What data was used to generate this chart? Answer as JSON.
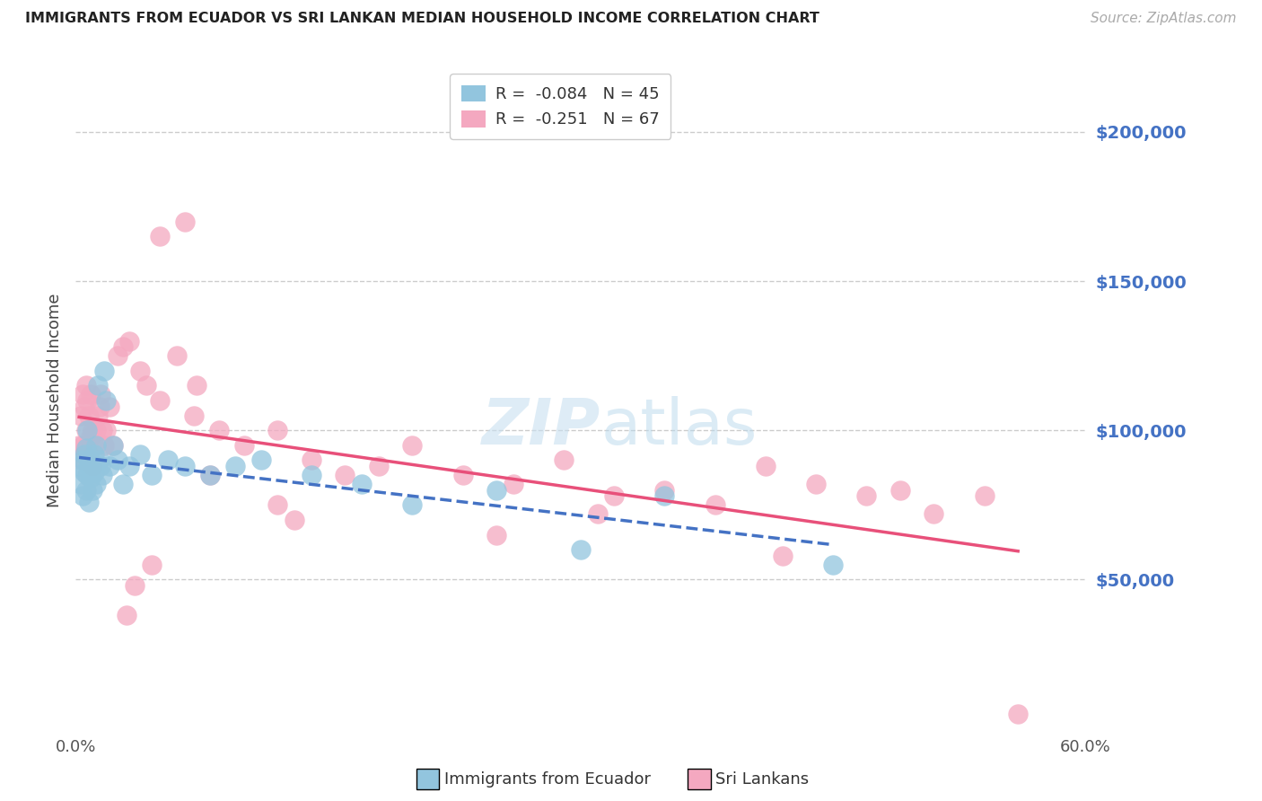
{
  "title": "IMMIGRANTS FROM ECUADOR VS SRI LANKAN MEDIAN HOUSEHOLD INCOME CORRELATION CHART",
  "source": "Source: ZipAtlas.com",
  "ylabel": "Median Household Income",
  "ytick_labels": [
    "$50,000",
    "$100,000",
    "$150,000",
    "$200,000"
  ],
  "ytick_values": [
    50000,
    100000,
    150000,
    200000
  ],
  "ymin": 0,
  "ymax": 220000,
  "xmin": 0.0,
  "xmax": 0.6,
  "legend_r_ecuador": "R =  -0.084",
  "legend_n_ecuador": "N = 45",
  "legend_r_srilanka": "R =  -0.251",
  "legend_n_srilanka": "N = 67",
  "color_ecuador": "#92C5DE",
  "color_srilanka": "#F4A8C0",
  "trendline_ecuador_color": "#4472C4",
  "trendline_srilanka_color": "#E8507A",
  "background_color": "#FFFFFF",
  "grid_color": "#CCCCCC",
  "yaxis_label_color": "#4472C4",
  "title_color": "#222222",
  "legend_label_ecuador": "Immigrants from Ecuador",
  "legend_label_srilanka": "Sri Lankans",
  "r_value_color": "#E8507A",
  "ecuador_x": [
    0.002,
    0.003,
    0.004,
    0.004,
    0.005,
    0.005,
    0.006,
    0.006,
    0.007,
    0.007,
    0.008,
    0.008,
    0.009,
    0.009,
    0.01,
    0.01,
    0.011,
    0.011,
    0.012,
    0.012,
    0.013,
    0.014,
    0.015,
    0.016,
    0.017,
    0.018,
    0.02,
    0.022,
    0.025,
    0.028,
    0.032,
    0.038,
    0.045,
    0.055,
    0.065,
    0.08,
    0.095,
    0.11,
    0.14,
    0.17,
    0.2,
    0.25,
    0.3,
    0.35,
    0.45
  ],
  "ecuador_y": [
    88000,
    82000,
    90000,
    78000,
    92000,
    86000,
    80000,
    94000,
    85000,
    100000,
    88000,
    76000,
    90000,
    84000,
    88000,
    80000,
    92000,
    86000,
    95000,
    82000,
    115000,
    90000,
    88000,
    85000,
    120000,
    110000,
    88000,
    95000,
    90000,
    82000,
    88000,
    92000,
    85000,
    90000,
    88000,
    85000,
    88000,
    90000,
    85000,
    82000,
    75000,
    80000,
    60000,
    78000,
    55000
  ],
  "srilanka_x": [
    0.002,
    0.003,
    0.003,
    0.004,
    0.004,
    0.005,
    0.005,
    0.006,
    0.006,
    0.007,
    0.007,
    0.008,
    0.008,
    0.009,
    0.009,
    0.01,
    0.01,
    0.011,
    0.012,
    0.013,
    0.014,
    0.015,
    0.016,
    0.017,
    0.018,
    0.02,
    0.022,
    0.025,
    0.028,
    0.032,
    0.038,
    0.042,
    0.05,
    0.06,
    0.072,
    0.085,
    0.1,
    0.12,
    0.14,
    0.16,
    0.18,
    0.2,
    0.23,
    0.26,
    0.29,
    0.32,
    0.35,
    0.38,
    0.41,
    0.44,
    0.47,
    0.49,
    0.51,
    0.54,
    0.03,
    0.045,
    0.035,
    0.12,
    0.13,
    0.07,
    0.08,
    0.25,
    0.31,
    0.42,
    0.56,
    0.05,
    0.065
  ],
  "srilanka_y": [
    95000,
    105000,
    90000,
    112000,
    95000,
    108000,
    92000,
    100000,
    115000,
    95000,
    110000,
    105000,
    92000,
    112000,
    98000,
    100000,
    88000,
    95000,
    100000,
    105000,
    108000,
    112000,
    100000,
    95000,
    100000,
    108000,
    95000,
    125000,
    128000,
    130000,
    120000,
    115000,
    110000,
    125000,
    115000,
    100000,
    95000,
    100000,
    90000,
    85000,
    88000,
    95000,
    85000,
    82000,
    90000,
    78000,
    80000,
    75000,
    88000,
    82000,
    78000,
    80000,
    72000,
    78000,
    38000,
    55000,
    48000,
    75000,
    70000,
    105000,
    85000,
    65000,
    72000,
    58000,
    5000,
    165000,
    170000
  ]
}
